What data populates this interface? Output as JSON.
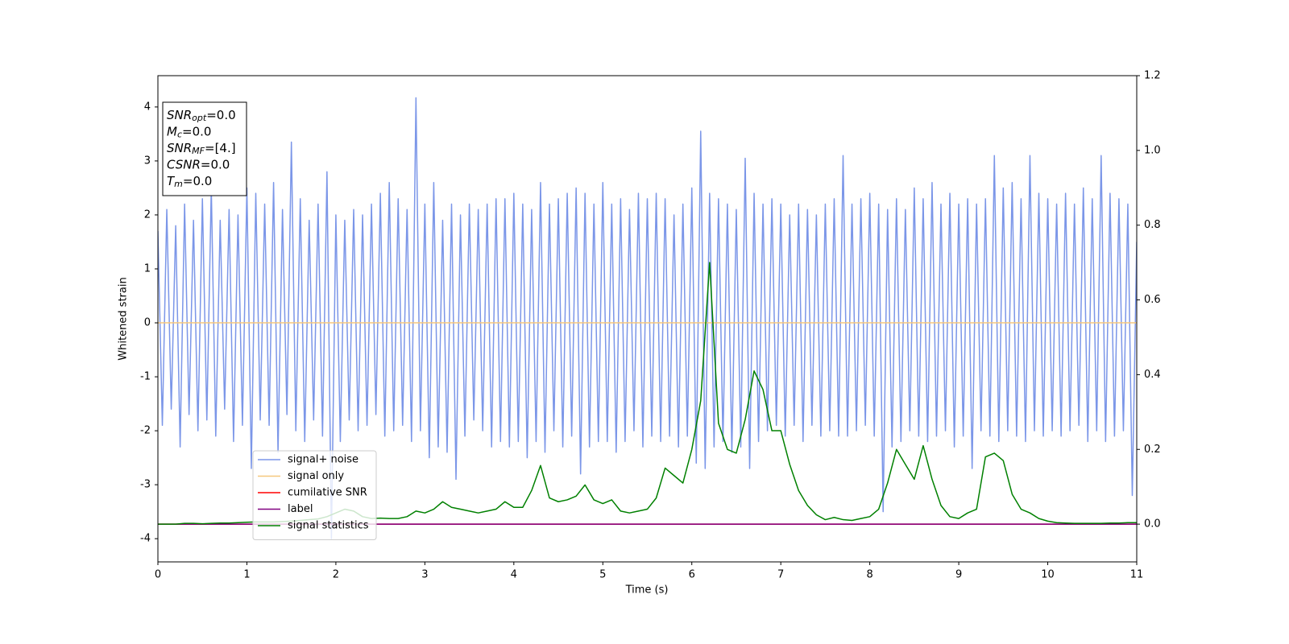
{
  "chart_data": {
    "type": "line",
    "x_label": "Time (s)",
    "y_label": "Whitened strain",
    "xlim": [
      0,
      11
    ],
    "xticks": [
      0,
      1,
      2,
      3,
      4,
      5,
      6,
      7,
      8,
      9,
      10,
      11
    ],
    "ylim": [
      -4.43,
      4.58
    ],
    "yticks": [
      -4,
      -3,
      -2,
      -1,
      0,
      1,
      2,
      3,
      4
    ],
    "y2lim": [
      -0.101,
      1.2
    ],
    "y2ticks": [
      {
        "value": 0,
        "label": "0.0"
      },
      {
        "value": 0.2,
        "label": "0.2"
      },
      {
        "value": 0.4,
        "label": "0.4"
      },
      {
        "value": 0.6,
        "label": "0.6"
      },
      {
        "value": 0.8,
        "label": "0.8"
      },
      {
        "value": 1,
        "label": "1.0"
      },
      {
        "value": 1.2,
        "label": "1.2"
      }
    ],
    "annotation": [
      {
        "name": "SNR",
        "sub": "opt",
        "text": "=0.0"
      },
      {
        "name": "M",
        "sub": "c",
        "text": "=0.0"
      },
      {
        "name": "SNR",
        "sub": "MF",
        "text": "=[4.]"
      },
      {
        "name": "CSNR",
        "text": "=0.0"
      },
      {
        "name": "T",
        "sub": "m",
        "text": "=0.0"
      }
    ],
    "series": [
      {
        "name": "signal+ noise",
        "color": "#7b96e8",
        "axis": "y",
        "x": [
          0,
          0.05,
          0.1,
          0.15,
          0.2,
          0.25,
          0.3,
          0.35,
          0.4,
          0.45,
          0.5,
          0.55,
          0.6,
          0.65,
          0.7,
          0.75,
          0.8,
          0.85,
          0.9,
          0.95,
          1,
          1.05,
          1.1,
          1.15,
          1.2,
          1.25,
          1.3,
          1.35,
          1.4,
          1.45,
          1.5,
          1.55,
          1.6,
          1.65,
          1.7,
          1.75,
          1.8,
          1.85,
          1.9,
          1.95,
          2,
          2.05,
          2.1,
          2.15,
          2.2,
          2.25,
          2.3,
          2.35,
          2.4,
          2.45,
          2.5,
          2.55,
          2.6,
          2.65,
          2.7,
          2.75,
          2.8,
          2.85,
          2.9,
          2.95,
          3,
          3.05,
          3.1,
          3.15,
          3.2,
          3.25,
          3.3,
          3.35,
          3.4,
          3.45,
          3.5,
          3.55,
          3.6,
          3.65,
          3.7,
          3.75,
          3.8,
          3.85,
          3.9,
          3.95,
          4,
          4.05,
          4.1,
          4.15,
          4.2,
          4.25,
          4.3,
          4.35,
          4.4,
          4.45,
          4.5,
          4.55,
          4.6,
          4.65,
          4.7,
          4.75,
          4.8,
          4.85,
          4.9,
          4.95,
          5,
          5.05,
          5.1,
          5.15,
          5.2,
          5.25,
          5.3,
          5.35,
          5.4,
          5.45,
          5.5,
          5.55,
          5.6,
          5.65,
          5.7,
          5.75,
          5.8,
          5.85,
          5.9,
          5.95,
          6,
          6.05,
          6.1,
          6.15,
          6.2,
          6.25,
          6.3,
          6.35,
          6.4,
          6.45,
          6.5,
          6.55,
          6.6,
          6.65,
          6.7,
          6.75,
          6.8,
          6.85,
          6.9,
          6.95,
          7,
          7.05,
          7.1,
          7.15,
          7.2,
          7.25,
          7.3,
          7.35,
          7.4,
          7.45,
          7.5,
          7.55,
          7.6,
          7.65,
          7.7,
          7.75,
          7.8,
          7.85,
          7.9,
          7.95,
          8,
          8.05,
          8.1,
          8.15,
          8.2,
          8.25,
          8.3,
          8.35,
          8.4,
          8.45,
          8.5,
          8.55,
          8.6,
          8.65,
          8.7,
          8.75,
          8.8,
          8.85,
          8.9,
          8.95,
          9,
          9.05,
          9.1,
          9.15,
          9.2,
          9.25,
          9.3,
          9.35,
          9.4,
          9.45,
          9.5,
          9.55,
          9.6,
          9.65,
          9.7,
          9.75,
          9.8,
          9.85,
          9.9,
          9.95,
          10,
          10.05,
          10.1,
          10.15,
          10.2,
          10.25,
          10.3,
          10.35,
          10.4,
          10.45,
          10.5,
          10.55,
          10.6,
          10.65,
          10.7,
          10.75,
          10.8,
          10.85,
          10.9,
          10.95,
          11
        ],
        "values": [
          1.7,
          -1.9,
          2.1,
          -1.6,
          1.8,
          -2.3,
          2.2,
          -1.7,
          1.9,
          -2.0,
          2.3,
          -1.8,
          2.5,
          -2.1,
          1.9,
          -1.6,
          2.1,
          -2.2,
          2.0,
          -1.9,
          2.5,
          -2.7,
          2.4,
          -1.8,
          2.2,
          -1.9,
          2.6,
          -2.4,
          2.1,
          -1.7,
          3.35,
          -2.0,
          2.3,
          -2.2,
          1.9,
          -1.8,
          2.2,
          -2.1,
          2.8,
          -4.0,
          2.0,
          -2.2,
          1.9,
          -1.8,
          2.1,
          -2.0,
          2.0,
          -1.9,
          2.2,
          -1.7,
          2.4,
          -2.1,
          2.6,
          -2.0,
          2.3,
          -1.9,
          2.1,
          -2.2,
          4.17,
          -2.0,
          2.2,
          -2.5,
          2.6,
          -2.3,
          1.9,
          -2.4,
          2.2,
          -2.9,
          2.0,
          -2.1,
          2.2,
          -1.8,
          2.1,
          -2.0,
          2.2,
          -2.3,
          2.3,
          -2.2,
          2.3,
          -2.3,
          2.4,
          -2.2,
          2.2,
          -2.5,
          2.1,
          -2.2,
          2.6,
          -2.4,
          2.2,
          -2.0,
          2.3,
          -2.3,
          2.4,
          -2.1,
          2.5,
          -2.8,
          2.4,
          -2.3,
          2.2,
          -2.2,
          2.6,
          -2.2,
          2.2,
          -2.4,
          2.3,
          -2.2,
          2.1,
          -2.0,
          2.4,
          -2.3,
          2.3,
          -2.1,
          2.4,
          -2.2,
          2.3,
          -2.1,
          2.0,
          -2.3,
          2.2,
          -2.1,
          2.5,
          -2.6,
          3.55,
          -2.7,
          2.4,
          -2.3,
          2.3,
          -2.2,
          2.2,
          -2.4,
          2.1,
          -2.3,
          3.05,
          -2.7,
          2.4,
          -2.2,
          2.2,
          -2.0,
          2.3,
          -1.9,
          2.2,
          -2.1,
          2.0,
          -1.9,
          2.2,
          -2.2,
          2.1,
          -1.9,
          2.0,
          -2.1,
          2.2,
          -2.0,
          2.3,
          -2.1,
          3.1,
          -2.1,
          2.2,
          -2.0,
          2.3,
          -1.9,
          2.4,
          -2.1,
          2.2,
          -3.5,
          2.1,
          -2.3,
          2.3,
          -2.2,
          2.1,
          -2.0,
          2.5,
          -2.1,
          2.3,
          -2.2,
          2.6,
          -2.1,
          2.2,
          -2.0,
          2.4,
          -2.3,
          2.2,
          -2.1,
          2.3,
          -2.7,
          2.2,
          -2.0,
          2.3,
          -2.1,
          3.1,
          -2.2,
          2.5,
          -2.0,
          2.6,
          -2.1,
          2.3,
          -2.2,
          3.1,
          -2.0,
          2.4,
          -2.1,
          2.3,
          -2.0,
          2.2,
          -2.1,
          2.4,
          -2.0,
          2.2,
          -1.9,
          2.5,
          -2.2,
          2.3,
          -2.0,
          3.1,
          -2.2,
          2.4,
          -2.1,
          2.3,
          -2.0,
          2.2,
          -3.2,
          1.5
        ]
      },
      {
        "name": "signal only",
        "color": "#f5c77e",
        "axis": "y",
        "x": [
          0,
          11
        ],
        "values": [
          0,
          0
        ]
      },
      {
        "name": "cumilative SNR",
        "color": "#ff0000",
        "axis": "y2",
        "x": [
          0,
          11
        ],
        "values": [
          0,
          0
        ]
      },
      {
        "name": "label",
        "color": "#800080",
        "axis": "y2",
        "x": [
          0,
          11
        ],
        "values": [
          0,
          0
        ]
      },
      {
        "name": "signal statistics",
        "color": "#008000",
        "axis": "y2",
        "x": [
          0,
          0.1,
          0.2,
          0.3,
          0.4,
          0.5,
          0.6,
          0.7,
          0.8,
          0.9,
          1,
          1.1,
          1.2,
          1.3,
          1.4,
          1.5,
          1.6,
          1.7,
          1.8,
          1.9,
          2,
          2.1,
          2.2,
          2.3,
          2.4,
          2.5,
          2.6,
          2.7,
          2.8,
          2.9,
          3,
          3.1,
          3.2,
          3.3,
          3.4,
          3.5,
          3.6,
          3.7,
          3.8,
          3.9,
          4,
          4.1,
          4.2,
          4.3,
          4.4,
          4.5,
          4.6,
          4.7,
          4.8,
          4.9,
          5,
          5.1,
          5.2,
          5.3,
          5.4,
          5.5,
          5.6,
          5.7,
          5.8,
          5.9,
          6,
          6.1,
          6.2,
          6.3,
          6.4,
          6.5,
          6.6,
          6.7,
          6.8,
          6.9,
          7,
          7.1,
          7.2,
          7.3,
          7.4,
          7.5,
          7.6,
          7.7,
          7.8,
          7.9,
          8,
          8.1,
          8.2,
          8.3,
          8.4,
          8.5,
          8.6,
          8.7,
          8.8,
          8.9,
          9,
          9.1,
          9.2,
          9.3,
          9.4,
          9.5,
          9.6,
          9.7,
          9.8,
          9.9,
          10,
          10.1,
          10.2,
          10.3,
          10.4,
          10.5,
          10.6,
          10.7,
          10.8,
          10.9,
          11
        ],
        "values": [
          0,
          0,
          0,
          0.002,
          0.002,
          0.001,
          0.002,
          0.003,
          0.003,
          0.004,
          0.005,
          0.006,
          0.006,
          0.006,
          0.007,
          0.008,
          0.01,
          0.012,
          0.014,
          0.02,
          0.03,
          0.04,
          0.035,
          0.02,
          0.015,
          0.016,
          0.015,
          0.015,
          0.02,
          0.035,
          0.03,
          0.04,
          0.06,
          0.045,
          0.04,
          0.035,
          0.03,
          0.035,
          0.04,
          0.06,
          0.045,
          0.045,
          0.09,
          0.157,
          0.07,
          0.06,
          0.065,
          0.075,
          0.105,
          0.065,
          0.055,
          0.065,
          0.035,
          0.03,
          0.035,
          0.04,
          0.07,
          0.15,
          0.13,
          0.11,
          0.2,
          0.33,
          0.7,
          0.27,
          0.2,
          0.19,
          0.28,
          0.41,
          0.36,
          0.25,
          0.25,
          0.16,
          0.09,
          0.05,
          0.025,
          0.012,
          0.018,
          0.012,
          0.01,
          0.015,
          0.02,
          0.04,
          0.11,
          0.2,
          0.16,
          0.12,
          0.21,
          0.12,
          0.05,
          0.02,
          0.015,
          0.03,
          0.04,
          0.18,
          0.19,
          0.17,
          0.08,
          0.04,
          0.03,
          0.015,
          0.008,
          0.004,
          0.003,
          0.002,
          0.002,
          0.002,
          0.002,
          0.003,
          0.003,
          0.004,
          0.004
        ]
      }
    ]
  }
}
